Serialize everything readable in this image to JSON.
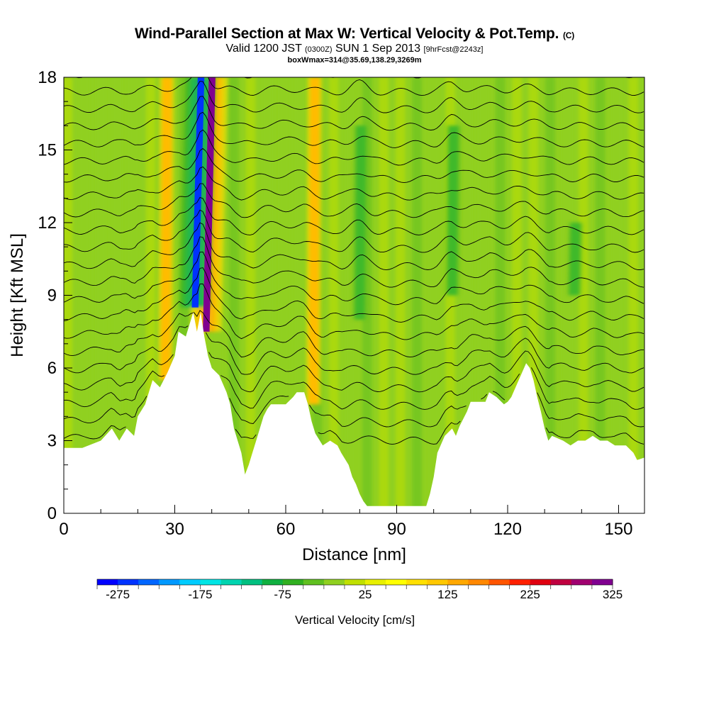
{
  "header": {
    "title_main": "Wind-Parallel Section at Max W: Vertical Velocity & Pot.Temp.",
    "title_mark": "(C)",
    "valid_prefix": "Valid 1200 JST",
    "valid_utc": "(0300Z)",
    "valid_date": "SUN 1 Sep 2013",
    "valid_fcst": "[9hrFcst@2243z]",
    "box_line": "boxWmax=314@35.69,138.29,3269m"
  },
  "chart_data": {
    "type": "heatmap",
    "title": "Wind-Parallel Section at Max W: Vertical Velocity & Pot.Temp.",
    "xlabel": "Distance [nm]",
    "ylabel": "Height [Kft MSL]",
    "xlim": [
      0,
      157
    ],
    "ylim": [
      0,
      18
    ],
    "x_ticks": [
      0,
      30,
      60,
      90,
      120,
      150
    ],
    "y_ticks": [
      0,
      3,
      6,
      9,
      12,
      15,
      18
    ],
    "colorbar": {
      "label": "Vertical Velocity [cm/s]",
      "min": -300,
      "max": 325,
      "tick_labels": [
        -275,
        -175,
        -75,
        25,
        125,
        225,
        325
      ],
      "colors": [
        "#0000ff",
        "#0033ff",
        "#0066ff",
        "#0099ff",
        "#00ccff",
        "#00e5e5",
        "#00d4b0",
        "#00c080",
        "#10b040",
        "#30b020",
        "#60c020",
        "#90d020",
        "#c0e000",
        "#e8f000",
        "#ffff00",
        "#ffe000",
        "#ffc800",
        "#ffa800",
        "#ff8800",
        "#ff5500",
        "#ff2000",
        "#e00010",
        "#c00040",
        "#a00070",
        "#800090"
      ]
    },
    "terrain_kft": [
      [
        0,
        2.7
      ],
      [
        5,
        2.7
      ],
      [
        10,
        3.0
      ],
      [
        13,
        3.5
      ],
      [
        15,
        3.0
      ],
      [
        17,
        3.5
      ],
      [
        19,
        3.2
      ],
      [
        20,
        4.0
      ],
      [
        22,
        4.5
      ],
      [
        24,
        5.5
      ],
      [
        26,
        5.2
      ],
      [
        28,
        5.8
      ],
      [
        30,
        6.5
      ],
      [
        31,
        7.5
      ],
      [
        33,
        7.3
      ],
      [
        35,
        8.3
      ],
      [
        36,
        7.5
      ],
      [
        37,
        8.3
      ],
      [
        38,
        7.3
      ],
      [
        39,
        6.5
      ],
      [
        40,
        6.0
      ],
      [
        42,
        5.7
      ],
      [
        44,
        5.0
      ],
      [
        45,
        4.5
      ],
      [
        46,
        3.5
      ],
      [
        47,
        3.0
      ],
      [
        48,
        2.5
      ],
      [
        49,
        1.6
      ],
      [
        50,
        2.0
      ],
      [
        51,
        2.5
      ],
      [
        52,
        3.0
      ],
      [
        53,
        3.5
      ],
      [
        54,
        4.0
      ],
      [
        55,
        4.3
      ],
      [
        56,
        4.5
      ],
      [
        60,
        4.5
      ],
      [
        62,
        4.8
      ],
      [
        63,
        5.0
      ],
      [
        65,
        5.0
      ],
      [
        66,
        4.5
      ],
      [
        67,
        3.8
      ],
      [
        68,
        3.3
      ],
      [
        70,
        2.8
      ],
      [
        72,
        3.0
      ],
      [
        74,
        2.8
      ],
      [
        75,
        2.5
      ],
      [
        77,
        2.0
      ],
      [
        78,
        1.5
      ],
      [
        79,
        1.2
      ],
      [
        80,
        0.8
      ],
      [
        81,
        0.5
      ],
      [
        82,
        0.3
      ],
      [
        98,
        0.3
      ],
      [
        99,
        0.8
      ],
      [
        100,
        1.5
      ],
      [
        101,
        2.5
      ],
      [
        103,
        3.2
      ],
      [
        105,
        3.5
      ],
      [
        106,
        3.2
      ],
      [
        107,
        3.6
      ],
      [
        109,
        4.2
      ],
      [
        110,
        4.6
      ],
      [
        114,
        4.6
      ],
      [
        115,
        5.0
      ],
      [
        117,
        4.8
      ],
      [
        119,
        4.5
      ],
      [
        120,
        4.6
      ],
      [
        121,
        4.8
      ],
      [
        123,
        5.5
      ],
      [
        125,
        6.2
      ],
      [
        126,
        6.0
      ],
      [
        127,
        5.5
      ],
      [
        128,
        4.8
      ],
      [
        129,
        4.2
      ],
      [
        130,
        3.5
      ],
      [
        131,
        3.0
      ],
      [
        132,
        3.2
      ],
      [
        135,
        3.0
      ],
      [
        137,
        2.8
      ],
      [
        139,
        3.0
      ],
      [
        141,
        3.0
      ],
      [
        143,
        3.2
      ],
      [
        145,
        3.0
      ],
      [
        147,
        3.0
      ],
      [
        149,
        2.8
      ],
      [
        152,
        2.8
      ],
      [
        154,
        2.5
      ],
      [
        155,
        2.2
      ],
      [
        157,
        2.3
      ]
    ],
    "w_features": [
      {
        "x": 38.5,
        "w_cm_s": 314,
        "z_range_kft": [
          7.5,
          18
        ]
      },
      {
        "x": 35.5,
        "w_cm_s": -275,
        "z_range_kft": [
          8.5,
          18
        ]
      },
      {
        "x": 27.5,
        "w_cm_s": 150,
        "z_range_kft": [
          5.5,
          18
        ]
      },
      {
        "x": 67.5,
        "w_cm_s": 150,
        "z_range_kft": [
          4.5,
          18
        ]
      },
      {
        "x": 80.0,
        "w_cm_s": -80,
        "z_range_kft": [
          8,
          16
        ]
      },
      {
        "x": 105.0,
        "w_cm_s": -80,
        "z_range_kft": [
          9,
          16
        ]
      },
      {
        "x": 138.0,
        "w_cm_s": -80,
        "z_range_kft": [
          9,
          12
        ]
      }
    ],
    "theta_contours": "potential temperature isentropes (K), labels unreadable at this resolution"
  }
}
